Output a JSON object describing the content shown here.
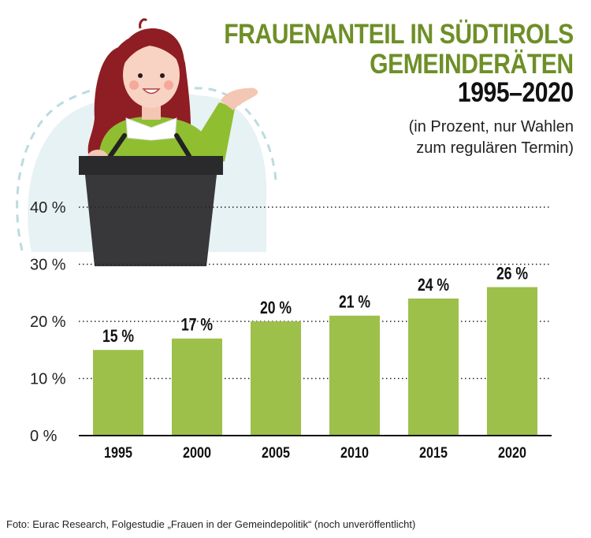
{
  "header": {
    "title_line1": "FRAUENANTEIL IN SÜDTIROLS",
    "title_line2": "GEMEINDERÄTEN",
    "title_line3": "1995–2020",
    "subtitle_line1": "(in Prozent, nur Wahlen",
    "subtitle_line2": "zum regulären Termin)"
  },
  "footer": {
    "source": "Foto: Eurac Research, Folgestudie „Frauen in der Gemeindepolitik“ (noch unveröffentlicht)"
  },
  "colors": {
    "bar": "#9cc04a",
    "title_green": "#6e8f27",
    "podium": "#2e2e30",
    "hair": "#8e1e24",
    "sweater": "#8fbf31"
  },
  "chart_data": {
    "type": "bar",
    "title": "FRAUENANTEIL IN SÜDTIROLS GEMEINDERÄTEN 1995–2020",
    "categories": [
      "1995",
      "2000",
      "2005",
      "2010",
      "2015",
      "2020"
    ],
    "values": [
      15,
      17,
      20,
      21,
      24,
      26
    ],
    "value_labels": [
      "15 %",
      "17 %",
      "20 %",
      "21 %",
      "24 %",
      "26 %"
    ],
    "ytick_values": [
      0,
      10,
      20,
      30,
      40
    ],
    "ytick_labels": [
      "0 %",
      "10 %",
      "20 %",
      "30 %",
      "40 %"
    ],
    "ylim": [
      0,
      40
    ],
    "grid": true,
    "xlabel": "",
    "ylabel": ""
  }
}
